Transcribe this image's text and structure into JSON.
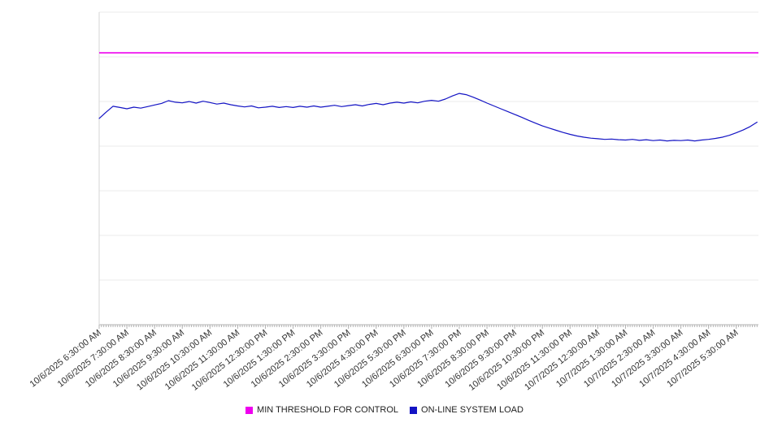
{
  "chart_data": {
    "type": "line",
    "title": "",
    "xlabel": "",
    "ylabel": "",
    "y_tick_labels_visible": false,
    "ylim": [
      0,
      100
    ],
    "x_range_hours": [
      0,
      23.8
    ],
    "grid": {
      "horizontal_divisions": 7,
      "vertical": false
    },
    "legend_position": "bottom",
    "axis_color": "#b3b3b3",
    "gridline_color": "#ebebeb",
    "tick_label_color": "#333333",
    "x_tick_labels": [
      "10/6/2025 6:30:00 AM",
      "10/6/2025 7:30:00 AM",
      "10/6/2025 8:30:00 AM",
      "10/6/2025 9:30:00 AM",
      "10/6/2025 10:30:00 AM",
      "10/6/2025 11:30:00 AM",
      "10/6/2025 12:30:00 PM",
      "10/6/2025 1:30:00 PM",
      "10/6/2025 2:30:00 PM",
      "10/6/2025 3:30:00 PM",
      "10/6/2025 4:30:00 PM",
      "10/6/2025 5:30:00 PM",
      "10/6/2025 6:30:00 PM",
      "10/6/2025 7:30:00 PM",
      "10/6/2025 8:30:00 PM",
      "10/6/2025 9:30:00 PM",
      "10/6/2025 10:30:00 PM",
      "10/6/2025 11:30:00 PM",
      "10/7/2025 12:30:00 AM",
      "10/7/2025 1:30:00 AM",
      "10/7/2025 2:30:00 AM",
      "10/7/2025 3:30:00 AM",
      "10/7/2025 4:30:00 AM",
      "10/7/2025 5:30:00 AM"
    ],
    "series": [
      {
        "name": "MIN THRESHOLD FOR CONTROL",
        "color": "#ee00ee",
        "style": "constant",
        "value": 87
      },
      {
        "name": "ON-LINE SYSTEM LOAD",
        "color": "#1414c4",
        "style": "line",
        "x_start_hours": 0,
        "x_step_hours": 0.25,
        "values": [
          66.0,
          68.0,
          69.9,
          69.5,
          69.1,
          69.6,
          69.3,
          69.8,
          70.3,
          70.8,
          71.7,
          71.2,
          71.0,
          71.4,
          70.9,
          71.5,
          71.1,
          70.6,
          70.9,
          70.4,
          70.0,
          69.7,
          70.0,
          69.4,
          69.6,
          69.9,
          69.5,
          69.8,
          69.5,
          69.9,
          69.6,
          70.0,
          69.6,
          69.9,
          70.2,
          69.8,
          70.1,
          70.4,
          70.0,
          70.5,
          70.8,
          70.4,
          70.9,
          71.2,
          70.9,
          71.3,
          71.0,
          71.5,
          71.8,
          71.5,
          72.2,
          73.2,
          74.0,
          73.6,
          72.8,
          71.9,
          70.9,
          70.0,
          69.1,
          68.2,
          67.3,
          66.4,
          65.4,
          64.5,
          63.6,
          62.9,
          62.2,
          61.5,
          60.9,
          60.4,
          60.0,
          59.7,
          59.5,
          59.3,
          59.4,
          59.2,
          59.1,
          59.3,
          59.0,
          59.2,
          58.9,
          59.1,
          58.8,
          59.0,
          58.9,
          59.1,
          58.8,
          59.1,
          59.3,
          59.6,
          60.0,
          60.6,
          61.4,
          62.3,
          63.4,
          64.8
        ]
      }
    ]
  },
  "legend": {
    "items": [
      {
        "label": "MIN THRESHOLD FOR CONTROL",
        "color": "#ee00ee"
      },
      {
        "label": "ON-LINE SYSTEM LOAD",
        "color": "#1414c4"
      }
    ]
  }
}
